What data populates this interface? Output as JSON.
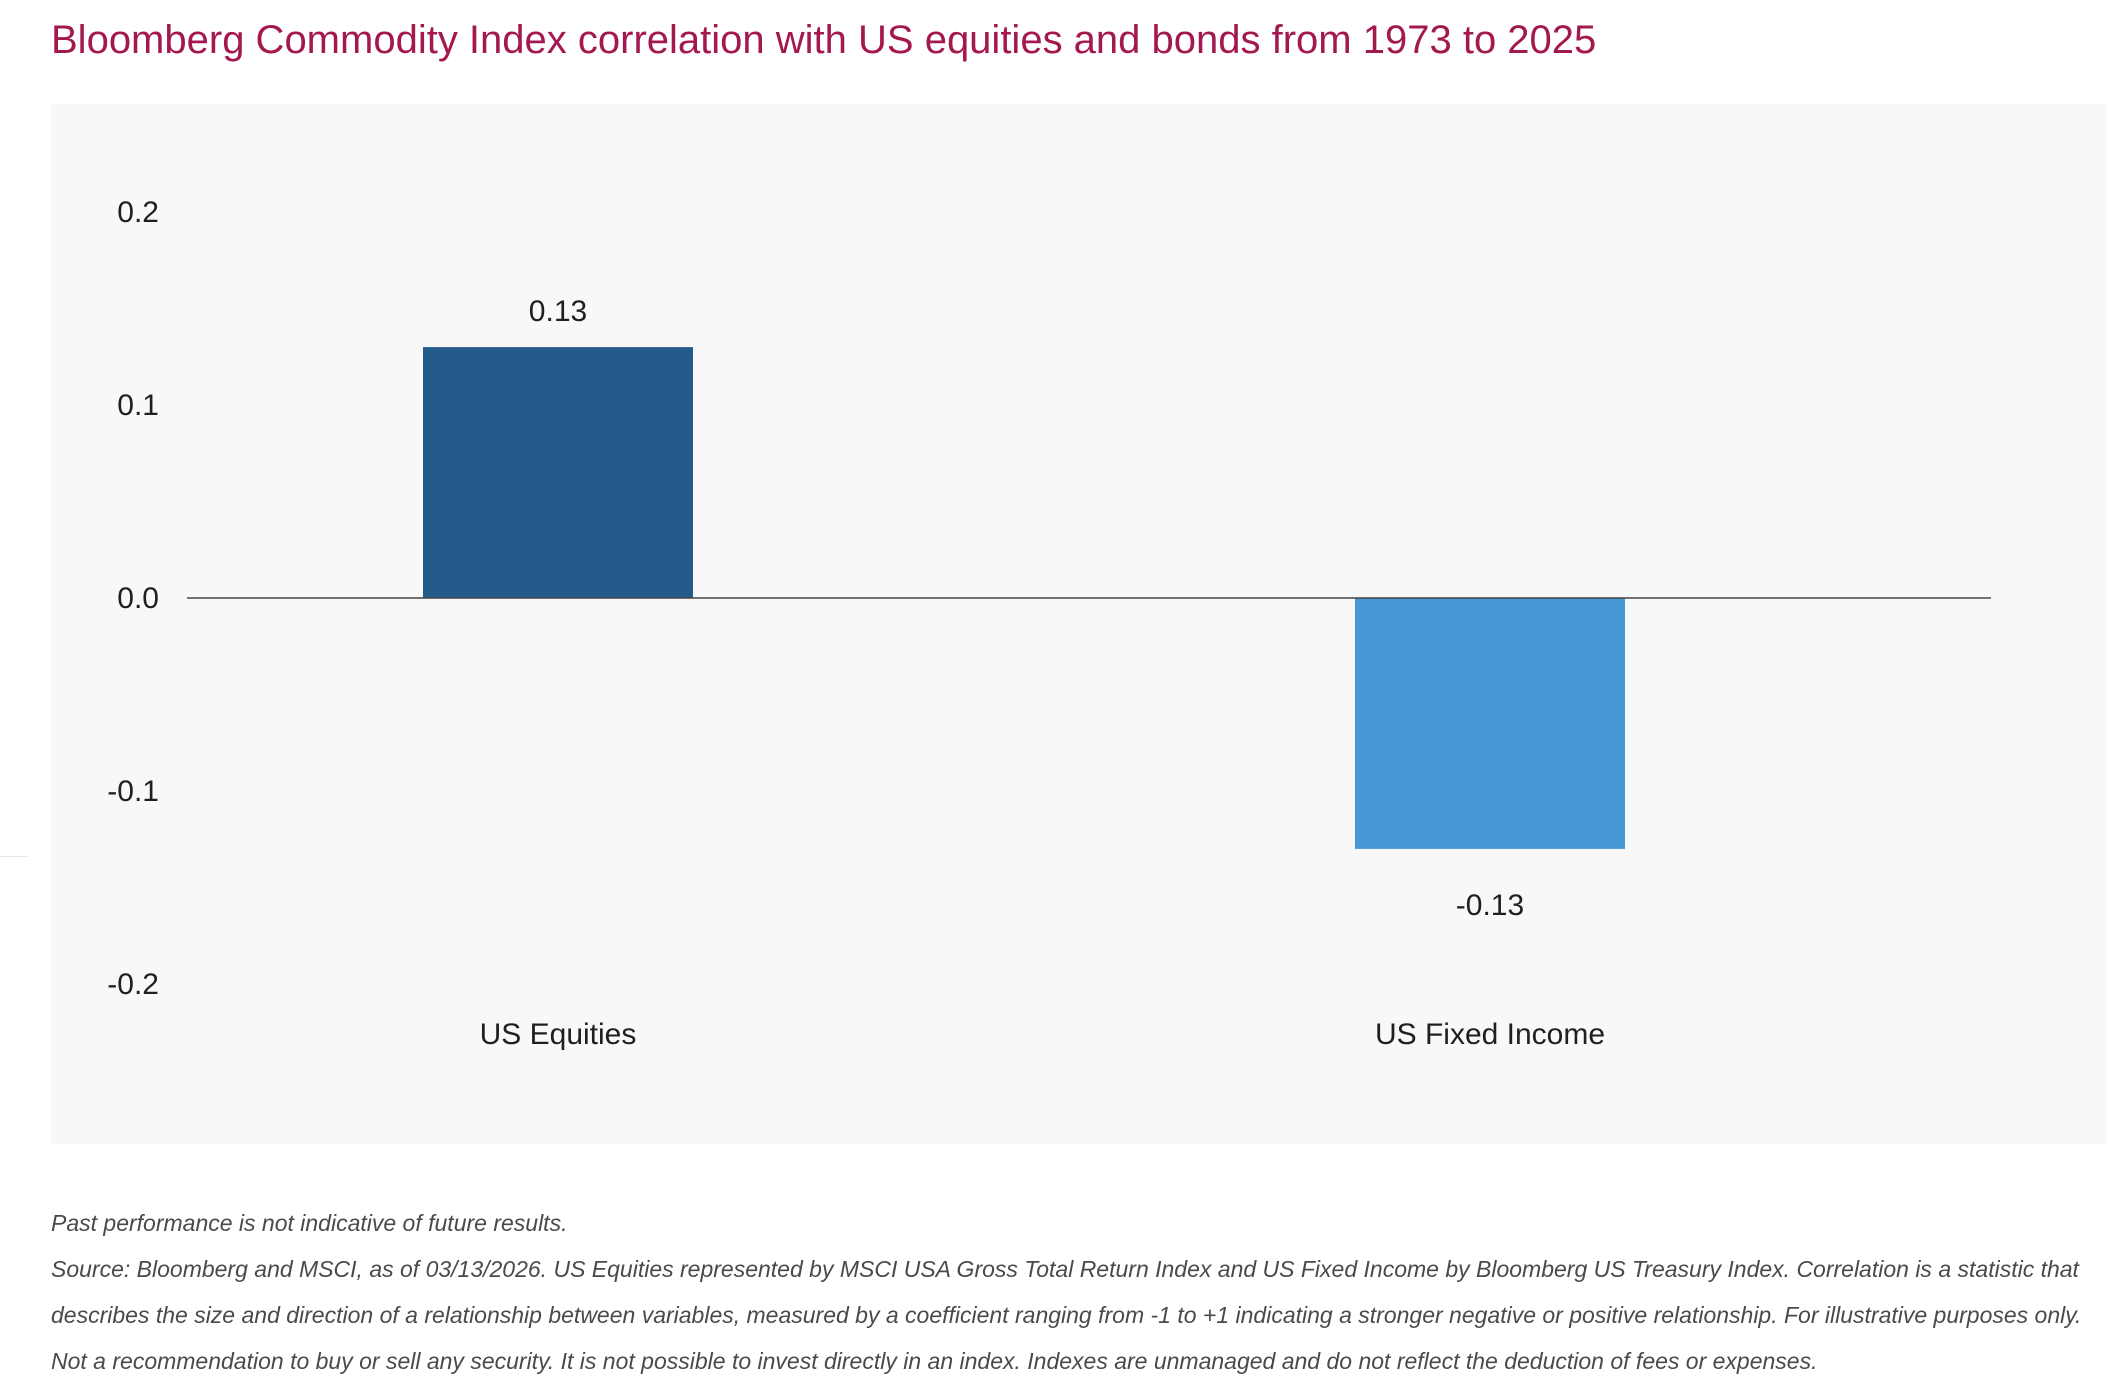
{
  "title": "Bloomberg Commodity Index correlation with US equities and bonds from 1973 to 2025",
  "colors": {
    "title": "#a3194f",
    "panel_bg": "#f8f8f8",
    "equities_bar": "#245b8a",
    "fixed_income_bar": "#4698d6",
    "axis_text": "#1f1f1f",
    "zero_line": "#444444"
  },
  "chart_data": {
    "type": "bar",
    "categories": [
      "US Equities",
      "US Fixed Income"
    ],
    "values": [
      0.13,
      -0.13
    ],
    "data_labels": [
      "0.13",
      "-0.13"
    ],
    "ylim": [
      -0.2,
      0.2
    ],
    "yticks": [
      0.2,
      0.1,
      0.0,
      -0.1,
      -0.2
    ],
    "ytick_labels": [
      "0.2",
      "0.1",
      "0.0",
      "-0.1",
      "-0.2"
    ],
    "bar_colors": [
      "#245b8a",
      "#4698d6"
    ],
    "grid": false,
    "legend": "none"
  },
  "notes": {
    "disclaimer": "Past performance is not indicative of future results.",
    "source": "Source: Bloomberg and MSCI, as of 03/13/2026. US Equities represented by MSCI USA Gross Total Return Index and US Fixed Income by Bloomberg US Treasury Index. Correlation is a statistic that describes the size and direction of a relationship between variables, measured by a coefficient ranging from -1 to +1 indicating a stronger negative or positive relationship. For illustrative purposes only. Not a recommendation to buy or sell any security. It is not possible to invest directly in an index. Indexes are unmanaged and do not reflect the deduction of fees or expenses."
  }
}
